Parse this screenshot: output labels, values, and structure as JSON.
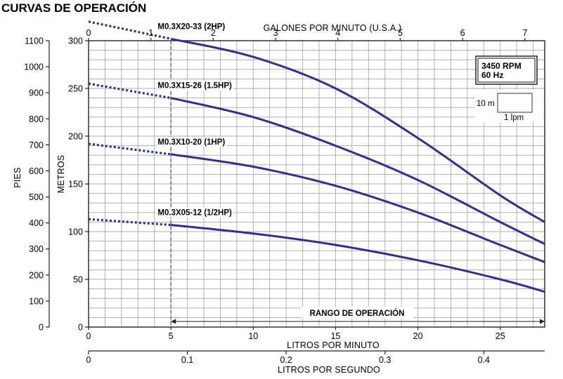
{
  "chart_data": {
    "type": "line",
    "title": "CURVAS DE OPERACIÓN",
    "x_axes": {
      "bottom": {
        "label": "LITROS POR MINUTO",
        "range": [
          0,
          27.7
        ],
        "ticks": [
          0,
          5,
          10,
          15,
          20,
          25
        ]
      },
      "lps": {
        "label": "LITROS POR SEGUNDO",
        "ticks": [
          "0",
          "0.1",
          "0.2",
          "0.3",
          "0.4"
        ]
      },
      "top": {
        "label": "GALONES POR MINUTO (U.S.A.)",
        "ticks": [
          0,
          1,
          2,
          3,
          4,
          5,
          6,
          7
        ]
      }
    },
    "y_axes": {
      "left": {
        "label": "PIES",
        "range": [
          0,
          1100
        ],
        "ticks": [
          0,
          100,
          200,
          300,
          400,
          500,
          600,
          700,
          800,
          900,
          1000,
          1100
        ]
      },
      "right": {
        "label": "METROS",
        "range": [
          0,
          300
        ],
        "ticks": [
          0,
          50,
          100,
          150,
          200,
          250,
          300
        ]
      }
    },
    "grid": true,
    "rpm_box": {
      "line1": "3450 RPM",
      "line2": "60 Hz"
    },
    "scale_box": {
      "y_label": "10 m",
      "x_label": "1 lpm"
    },
    "operating_range": {
      "label": "RANGO DE OPERACIÓN",
      "x": [
        5,
        27.7
      ]
    },
    "series": [
      {
        "name": "M0.3X20-33 (2HP)",
        "unit": "metros",
        "x": [
          0,
          5,
          10,
          15,
          20,
          25,
          27.7
        ],
        "y": [
          320,
          302,
          283,
          250,
          198,
          138,
          110
        ]
      },
      {
        "name": "M0.3X15-26 (1.5HP)",
        "unit": "metros",
        "x": [
          0,
          5,
          10,
          15,
          20,
          25,
          27.7
        ],
        "y": [
          255,
          240,
          220,
          190,
          154,
          110,
          87
        ]
      },
      {
        "name": "M0.3X10-20 (1HP)",
        "unit": "metros",
        "x": [
          0,
          5,
          10,
          15,
          20,
          25,
          27.7
        ],
        "y": [
          192,
          181,
          168,
          148,
          120,
          86,
          68
        ]
      },
      {
        "name": "M0.3X05-12 (1/2HP)",
        "unit": "metros",
        "x": [
          0,
          5,
          10,
          15,
          20,
          25,
          27.7
        ],
        "y": [
          113,
          107,
          98,
          86,
          70,
          50,
          37
        ]
      }
    ],
    "colors": {
      "curve": "#2e3192",
      "grid": "#a8a8a8",
      "frame": "#222222"
    }
  }
}
